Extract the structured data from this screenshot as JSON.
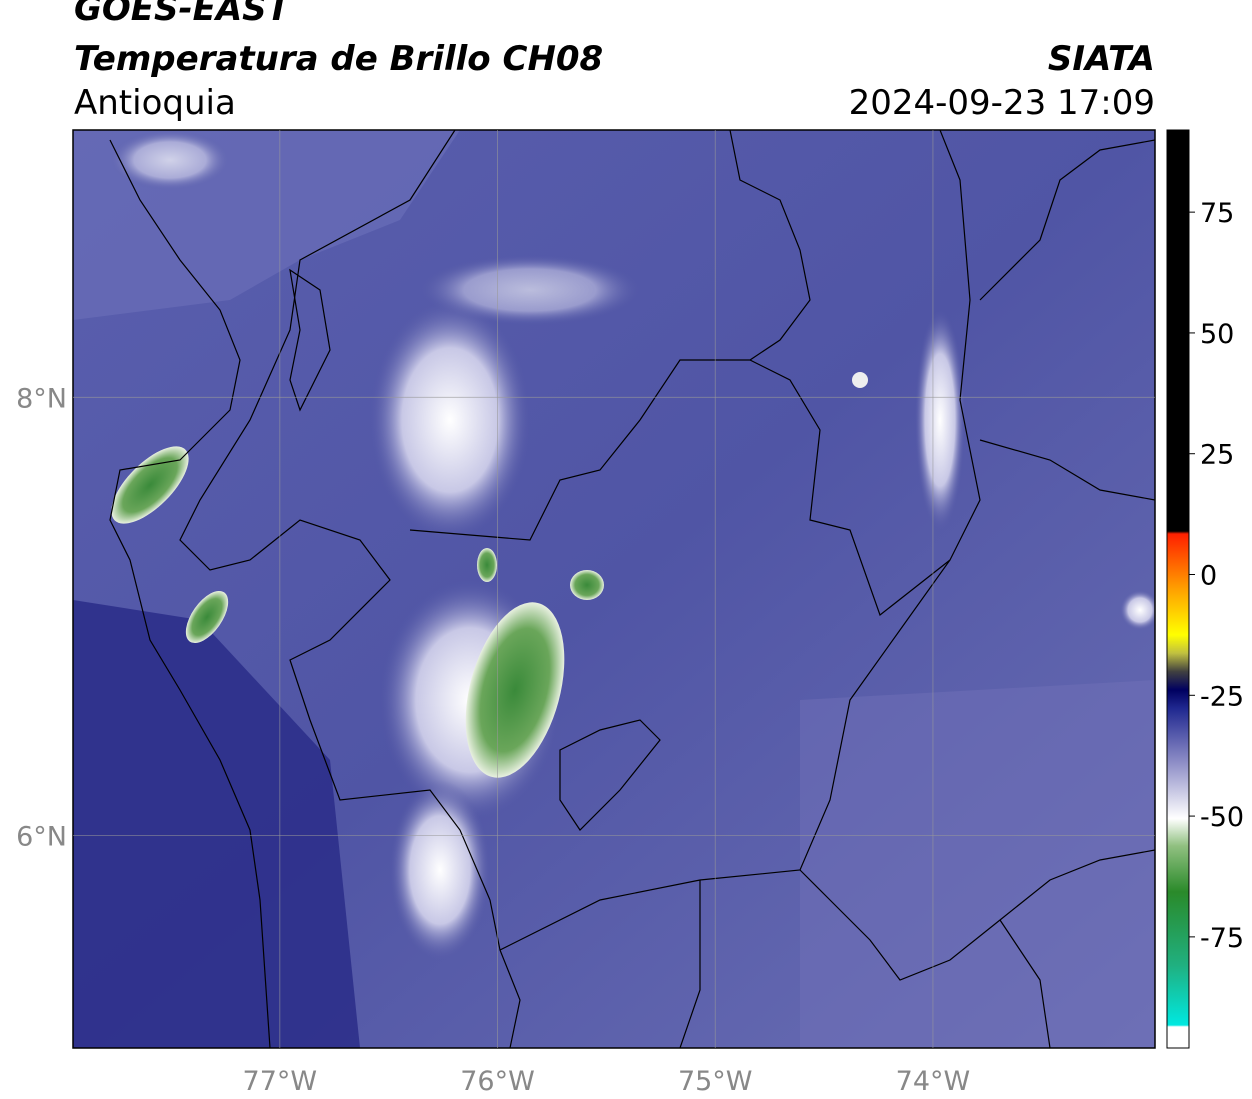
{
  "map": {
    "title": "GOES-EAST",
    "subtitle": "Temperatura de Brillo CH08",
    "region": "Antioquia",
    "source": "SIATA",
    "datetime": "2024-09-23 17:09",
    "xlim": [
      -77.95,
      -72.98
    ],
    "ylim": [
      5.03,
      9.22
    ],
    "xticks": [
      {
        "value": -77,
        "label": "77°W"
      },
      {
        "value": -76,
        "label": "76°W"
      },
      {
        "value": -75,
        "label": "75°W"
      },
      {
        "value": -74,
        "label": "74°W"
      }
    ],
    "yticks": [
      {
        "value": 8,
        "label": "8°N"
      },
      {
        "value": 6,
        "label": "6°N"
      }
    ],
    "colorbar": {
      "lim": [
        -98,
        92
      ],
      "ticks": [
        75,
        50,
        25,
        0,
        -25,
        -50,
        -75
      ]
    }
  }
}
